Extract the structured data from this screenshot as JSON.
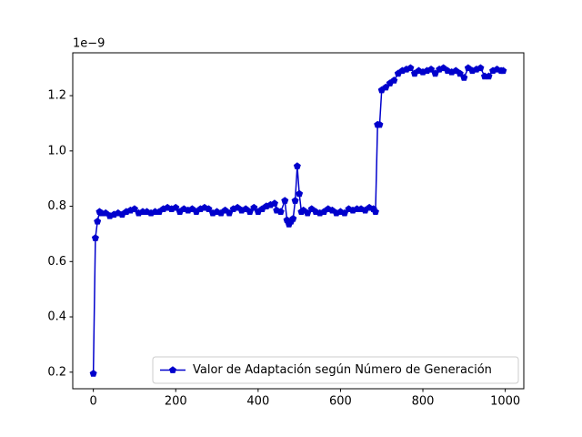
{
  "chart_data": {
    "type": "line",
    "y_offset_label": "1e−9",
    "x": [
      0,
      5,
      10,
      15,
      20,
      30,
      40,
      50,
      60,
      70,
      80,
      90,
      100,
      110,
      120,
      130,
      140,
      150,
      160,
      170,
      180,
      190,
      200,
      210,
      220,
      230,
      240,
      250,
      260,
      270,
      280,
      290,
      300,
      310,
      320,
      330,
      340,
      350,
      360,
      370,
      380,
      390,
      400,
      410,
      420,
      430,
      440,
      445,
      455,
      465,
      470,
      475,
      480,
      485,
      490,
      495,
      500,
      505,
      510,
      520,
      530,
      540,
      550,
      560,
      570,
      580,
      590,
      600,
      610,
      620,
      630,
      640,
      650,
      660,
      670,
      680,
      685,
      690,
      695,
      700,
      710,
      720,
      730,
      740,
      750,
      760,
      770,
      780,
      790,
      800,
      810,
      820,
      830,
      840,
      850,
      860,
      870,
      880,
      890,
      900,
      910,
      920,
      930,
      940,
      950,
      960,
      970,
      980,
      990,
      995
    ],
    "series": [
      {
        "name": "Valor de Adaptación según Número de Generación",
        "color": "#0000cc",
        "values": [
          0.195,
          0.685,
          0.745,
          0.78,
          0.775,
          0.775,
          0.765,
          0.77,
          0.775,
          0.77,
          0.78,
          0.785,
          0.79,
          0.775,
          0.78,
          0.78,
          0.775,
          0.78,
          0.78,
          0.79,
          0.795,
          0.79,
          0.795,
          0.78,
          0.79,
          0.785,
          0.79,
          0.78,
          0.79,
          0.795,
          0.79,
          0.775,
          0.78,
          0.775,
          0.785,
          0.775,
          0.79,
          0.795,
          0.785,
          0.79,
          0.78,
          0.795,
          0.78,
          0.79,
          0.8,
          0.805,
          0.81,
          0.785,
          0.78,
          0.82,
          0.75,
          0.735,
          0.745,
          0.755,
          0.82,
          0.945,
          0.845,
          0.78,
          0.785,
          0.775,
          0.79,
          0.78,
          0.775,
          0.78,
          0.79,
          0.785,
          0.775,
          0.78,
          0.775,
          0.79,
          0.785,
          0.79,
          0.79,
          0.785,
          0.795,
          0.79,
          0.78,
          1.095,
          1.095,
          1.22,
          1.23,
          1.245,
          1.255,
          1.28,
          1.29,
          1.295,
          1.3,
          1.28,
          1.29,
          1.285,
          1.29,
          1.295,
          1.28,
          1.295,
          1.3,
          1.29,
          1.285,
          1.29,
          1.28,
          1.265,
          1.3,
          1.29,
          1.295,
          1.3,
          1.27,
          1.27,
          1.29,
          1.295,
          1.29,
          1.29
        ]
      }
    ],
    "xlim": [
      -50,
      1045
    ],
    "ylim": [
      0.14,
      1.355
    ],
    "xticks": [
      0,
      200,
      400,
      600,
      800,
      1000
    ],
    "yticks": [
      0.2,
      0.4,
      0.6,
      0.8,
      {
        "value": 1,
        "label": "1.0"
      },
      1.2
    ],
    "legend": "lower right",
    "grid": false
  }
}
